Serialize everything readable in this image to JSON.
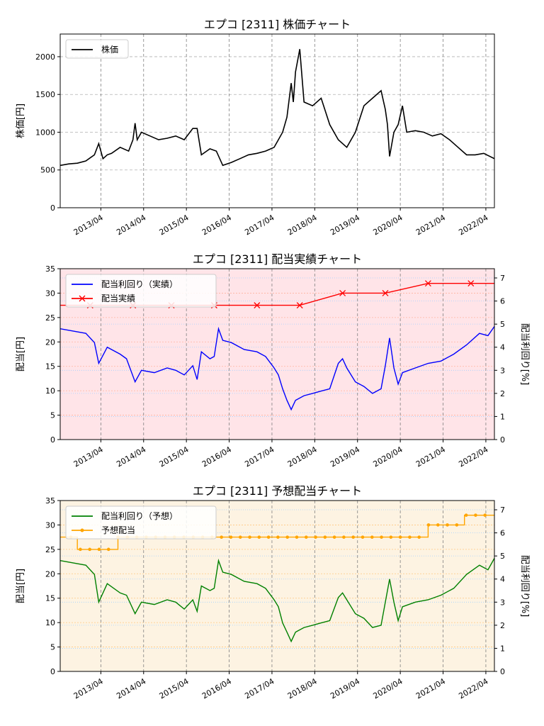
{
  "charts": {
    "price": {
      "title": "エプコ [2311]  株価チャート",
      "ylabel": "株価[円]",
      "legend": [
        "株価"
      ],
      "yticks": [
        "0",
        "500",
        "1000",
        "1500",
        "2000"
      ],
      "xticks": [
        "2013/04",
        "2014/04",
        "2015/04",
        "2016/04",
        "2017/04",
        "2018/04",
        "2019/04",
        "2020/04",
        "2021/04",
        "2022/04"
      ]
    },
    "actual": {
      "title": "エプコ [2311]  配当実績チャート",
      "ylabel": "配当[円]",
      "ylabel_right": "配当利回り[%]",
      "legend": [
        "配当利回り（実績）",
        "配当実績"
      ],
      "yticks": [
        "0",
        "5",
        "10",
        "15",
        "20",
        "25",
        "30",
        "35"
      ],
      "yticks_right": [
        "0",
        "1",
        "2",
        "3",
        "4",
        "5",
        "6",
        "7"
      ],
      "xticks": [
        "2013/04",
        "2014/04",
        "2015/04",
        "2016/04",
        "2017/04",
        "2018/04",
        "2019/04",
        "2020/04",
        "2021/04",
        "2022/04"
      ]
    },
    "forecast": {
      "title": "エプコ [2311]  予想配当チャート",
      "ylabel": "配当[円]",
      "ylabel_right": "配当利回り[%]",
      "legend": [
        "配当利回り（予想）",
        "予想配当"
      ],
      "yticks": [
        "0",
        "5",
        "10",
        "15",
        "20",
        "25",
        "30",
        "35"
      ],
      "yticks_right": [
        "0",
        "1",
        "2",
        "3",
        "4",
        "5",
        "6",
        "7"
      ],
      "xticks": [
        "2013/04",
        "2014/04",
        "2015/04",
        "2016/04",
        "2017/04",
        "2018/04",
        "2019/04",
        "2020/04",
        "2021/04",
        "2022/04"
      ]
    }
  },
  "chart_data": [
    {
      "type": "line",
      "title": "エプコ [2311]  株価チャート",
      "ylabel": "株価[円]",
      "xrange": [
        2012.3,
        2022.45
      ],
      "ylim": [
        0,
        2300
      ],
      "colors": {
        "price": "#000000"
      },
      "series": [
        {
          "name": "株価",
          "x": [
            2012.3,
            2012.5,
            2012.7,
            2012.9,
            2013.1,
            2013.2,
            2013.3,
            2013.4,
            2013.5,
            2013.7,
            2013.9,
            2014.0,
            2014.05,
            2014.1,
            2014.2,
            2014.4,
            2014.6,
            2014.8,
            2015.0,
            2015.2,
            2015.4,
            2015.5,
            2015.6,
            2015.8,
            2015.95,
            2016.1,
            2016.3,
            2016.5,
            2016.7,
            2016.9,
            2017.1,
            2017.3,
            2017.4,
            2017.5,
            2017.6,
            2017.7,
            2017.75,
            2017.8,
            2017.9,
            2018.0,
            2018.2,
            2018.4,
            2018.6,
            2018.8,
            2019.0,
            2019.2,
            2019.4,
            2019.6,
            2019.8,
            2019.9,
            2019.95,
            2020.0,
            2020.1,
            2020.2,
            2020.3,
            2020.4,
            2020.6,
            2020.8,
            2021.0,
            2021.2,
            2021.4,
            2021.6,
            2021.8,
            2022.0,
            2022.2,
            2022.45
          ],
          "y": [
            560,
            580,
            590,
            620,
            700,
            850,
            650,
            700,
            720,
            800,
            750,
            900,
            1120,
            900,
            1000,
            950,
            900,
            920,
            950,
            900,
            1050,
            1050,
            700,
            780,
            750,
            560,
            600,
            650,
            700,
            720,
            750,
            800,
            900,
            1000,
            1200,
            1650,
            1400,
            1800,
            2100,
            1400,
            1350,
            1450,
            1100,
            900,
            800,
            1000,
            1350,
            1450,
            1550,
            1300,
            1100,
            680,
            1000,
            1100,
            1350,
            1000,
            1020,
            1000,
            950,
            980,
            900,
            800,
            700,
            700,
            720,
            650
          ]
        }
      ]
    },
    {
      "type": "line",
      "title": "エプコ [2311]  配当実績チャート",
      "ylabel": "配当[円]",
      "ylabel_right": "配当利回り[%]",
      "xrange": [
        2012.3,
        2022.45
      ],
      "ylim": [
        0,
        35
      ],
      "ylim_right": [
        0,
        7.4
      ],
      "colors": {
        "yield": "#0000ff",
        "dividend": "#ff0000",
        "background": "#ffe4e8"
      },
      "series": [
        {
          "name": "配当利回り（実績）",
          "axis": "right",
          "x": [
            2012.3,
            2012.6,
            2012.9,
            2013.1,
            2013.2,
            2013.4,
            2013.7,
            2013.85,
            2014.05,
            2014.2,
            2014.5,
            2014.8,
            2015.0,
            2015.2,
            2015.4,
            2015.5,
            2015.6,
            2015.8,
            2015.9,
            2016.0,
            2016.1,
            2016.3,
            2016.6,
            2016.9,
            2017.1,
            2017.3,
            2017.4,
            2017.5,
            2017.6,
            2017.7,
            2017.8,
            2018.0,
            2018.2,
            2018.4,
            2018.6,
            2018.8,
            2018.9,
            2019.0,
            2019.2,
            2019.4,
            2019.6,
            2019.8,
            2019.9,
            2020.0,
            2020.1,
            2020.2,
            2020.3,
            2020.6,
            2020.9,
            2021.2,
            2021.5,
            2021.8,
            2022.1,
            2022.3,
            2022.45
          ],
          "y": [
            4.8,
            4.7,
            4.6,
            4.2,
            3.3,
            4.0,
            3.7,
            3.5,
            2.5,
            3.0,
            2.9,
            3.1,
            3.0,
            2.8,
            3.2,
            2.6,
            3.8,
            3.5,
            3.6,
            4.8,
            4.3,
            4.2,
            3.9,
            3.8,
            3.6,
            3.1,
            2.8,
            2.2,
            1.7,
            1.3,
            1.7,
            1.9,
            2.0,
            2.1,
            2.2,
            3.3,
            3.5,
            3.1,
            2.5,
            2.3,
            2.0,
            2.2,
            3.2,
            4.4,
            3.1,
            2.4,
            2.9,
            3.1,
            3.3,
            3.4,
            3.7,
            4.1,
            4.6,
            4.5,
            4.9
          ]
        },
        {
          "name": "配当実績",
          "axis": "left",
          "x": [
            2012.3,
            2013.0,
            2014.0,
            2014.9,
            2015.9,
            2016.9,
            2017.9,
            2018.9,
            2019.9,
            2020.9,
            2021.9,
            2022.45
          ],
          "y": [
            27.5,
            27.5,
            27.5,
            27.5,
            27.5,
            27.5,
            27.5,
            30,
            30,
            32,
            32,
            32
          ]
        }
      ]
    },
    {
      "type": "line",
      "title": "エプコ [2311]  予想配当チャート",
      "ylabel": "配当[円]",
      "ylabel_right": "配当利回り[%]",
      "xrange": [
        2012.3,
        2022.45
      ],
      "ylim": [
        0,
        35
      ],
      "ylim_right": [
        0,
        7.4
      ],
      "colors": {
        "yield": "#008000",
        "dividend": "#ffa500",
        "background": "#fdf3e2"
      },
      "series": [
        {
          "name": "配当利回り（予想）",
          "axis": "right",
          "x": [
            2012.3,
            2012.6,
            2012.9,
            2013.1,
            2013.2,
            2013.4,
            2013.7,
            2013.85,
            2014.05,
            2014.2,
            2014.5,
            2014.8,
            2015.0,
            2015.2,
            2015.4,
            2015.5,
            2015.6,
            2015.8,
            2015.9,
            2016.0,
            2016.1,
            2016.3,
            2016.6,
            2016.9,
            2017.1,
            2017.3,
            2017.4,
            2017.5,
            2017.6,
            2017.7,
            2017.8,
            2018.0,
            2018.2,
            2018.4,
            2018.6,
            2018.8,
            2018.9,
            2019.0,
            2019.2,
            2019.4,
            2019.6,
            2019.8,
            2019.9,
            2020.0,
            2020.1,
            2020.2,
            2020.3,
            2020.6,
            2020.9,
            2021.2,
            2021.5,
            2021.8,
            2022.1,
            2022.3,
            2022.45
          ],
          "y": [
            4.8,
            4.7,
            4.6,
            4.2,
            3.0,
            3.8,
            3.4,
            3.3,
            2.5,
            3.0,
            2.9,
            3.1,
            3.0,
            2.7,
            3.1,
            2.6,
            3.7,
            3.5,
            3.6,
            4.8,
            4.3,
            4.2,
            3.9,
            3.8,
            3.6,
            3.1,
            2.8,
            2.1,
            1.7,
            1.3,
            1.7,
            1.9,
            2.0,
            2.1,
            2.2,
            3.2,
            3.4,
            3.1,
            2.5,
            2.3,
            1.9,
            2.0,
            3.0,
            4.0,
            3.0,
            2.2,
            2.8,
            3.0,
            3.1,
            3.3,
            3.6,
            4.2,
            4.6,
            4.4,
            4.9
          ]
        },
        {
          "name": "予想配当",
          "axis": "left",
          "x": [
            2012.3,
            2012.7,
            2012.7,
            2013.65,
            2013.65,
            2020.9,
            2020.9,
            2021.75,
            2021.75,
            2022.45
          ],
          "y": [
            27.5,
            27.5,
            25,
            25,
            27.5,
            27.5,
            30,
            30,
            32,
            32
          ]
        }
      ]
    }
  ]
}
